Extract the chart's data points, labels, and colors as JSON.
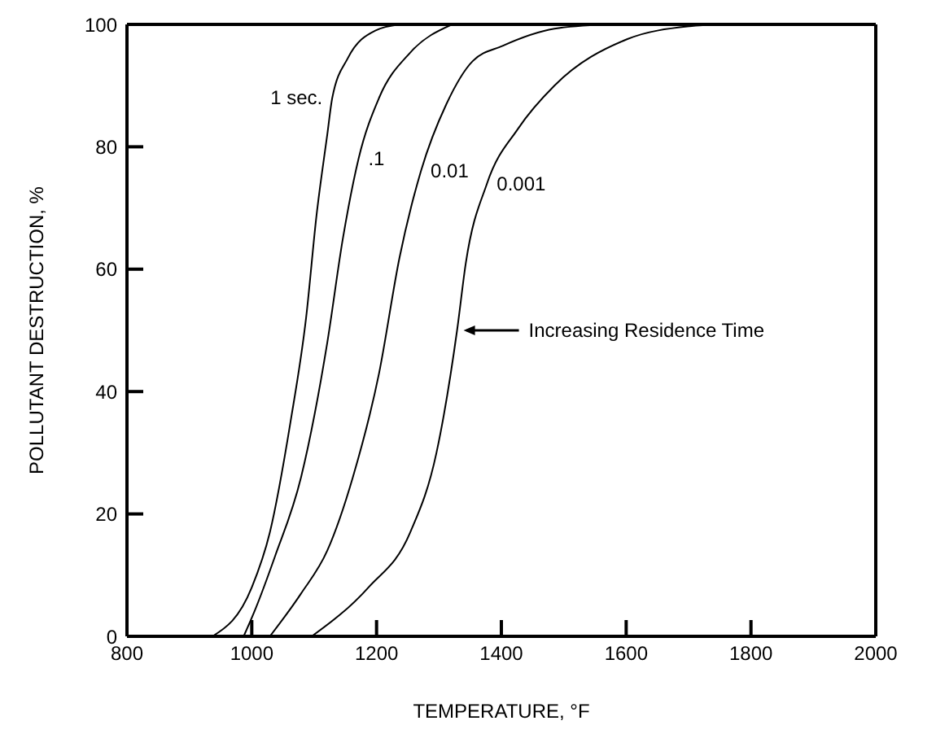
{
  "chart_data": {
    "type": "line",
    "xlabel": "TEMPERATURE, °F",
    "ylabel": "POLLUTANT DESTRUCTION, %",
    "xlim": [
      800,
      2000
    ],
    "xticks": [
      800,
      1000,
      1200,
      1400,
      1600,
      1800,
      2000
    ],
    "ylim": [
      0,
      100
    ],
    "yticks": [
      0,
      20,
      40,
      60,
      80,
      100
    ],
    "marker": "none",
    "line_style": "solid",
    "series": [
      {
        "name": "1 sec.",
        "color": "#000000",
        "x": [
          937,
          1000,
          1029,
          1062,
          1087,
          1104,
          1121,
          1129,
          1154,
          1198,
          1237
        ],
        "values": [
          0,
          8,
          17,
          35,
          52,
          69,
          82,
          88,
          94.5,
          99,
          100
        ]
      },
      {
        "name": ".1",
        "color": "#000000",
        "x": [
          987,
          1004,
          1037,
          1079,
          1121,
          1146,
          1171,
          1204,
          1254,
          1321
        ],
        "values": [
          0,
          4,
          13,
          26,
          48,
          65,
          78,
          88,
          95.4,
          100
        ]
      },
      {
        "name": "0.01",
        "color": "#000000",
        "x": [
          1029,
          1079,
          1121,
          1162,
          1204,
          1237,
          1271,
          1312,
          1354,
          1402,
          1485,
          1568
        ],
        "values": [
          0,
          7,
          14,
          26,
          43,
          62,
          76,
          87,
          94,
          96.5,
          99.3,
          100
        ]
      },
      {
        "name": "0.001",
        "color": "#000000",
        "x": [
          1096,
          1187,
          1254,
          1296,
          1329,
          1343,
          1377,
          1427,
          1485,
          1602,
          1702,
          1752
        ],
        "values": [
          0,
          8,
          17,
          30,
          50,
          61,
          74,
          83,
          90,
          97.6,
          99.7,
          100
        ]
      }
    ],
    "annotations": [
      "Increasing Residence Time"
    ]
  }
}
